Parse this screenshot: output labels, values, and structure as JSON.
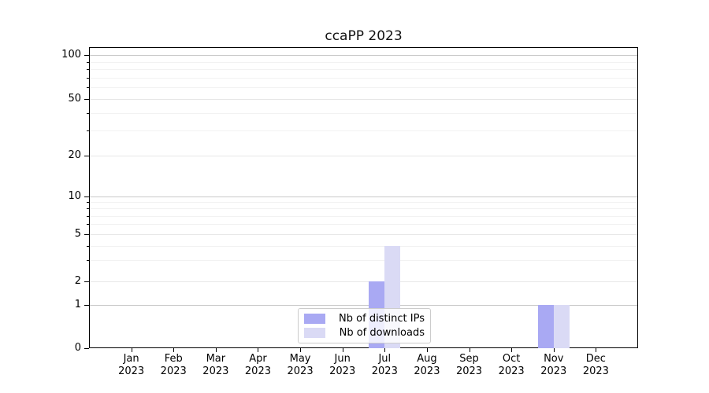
{
  "chart_data": {
    "type": "bar",
    "title": "ccaPP 2023",
    "categories": [
      "Jan 2023",
      "Feb 2023",
      "Mar 2023",
      "Apr 2023",
      "May 2023",
      "Jun 2023",
      "Jul 2023",
      "Aug 2023",
      "Sep 2023",
      "Oct 2023",
      "Nov 2023",
      "Dec 2023"
    ],
    "series": [
      {
        "name": "Nb of distinct IPs",
        "color": "#a9a9f3",
        "values": [
          0,
          0,
          0,
          0,
          0,
          0,
          2,
          0,
          0,
          0,
          1,
          0
        ]
      },
      {
        "name": "Nb of downloads",
        "color": "#dadaf5",
        "values": [
          0,
          0,
          0,
          0,
          0,
          0,
          4,
          0,
          0,
          0,
          1,
          0
        ]
      }
    ],
    "xlabel": "",
    "ylabel": "",
    "yscale": "symlog",
    "y_ticks": [
      0,
      1,
      2,
      5,
      10,
      20,
      50,
      100
    ],
    "y_minor_ticks": [
      3,
      4,
      6,
      7,
      8,
      9,
      30,
      40,
      60,
      70,
      80,
      90
    ],
    "ylim": [
      0,
      110
    ],
    "grid": "both",
    "legend_position": "lower center"
  }
}
